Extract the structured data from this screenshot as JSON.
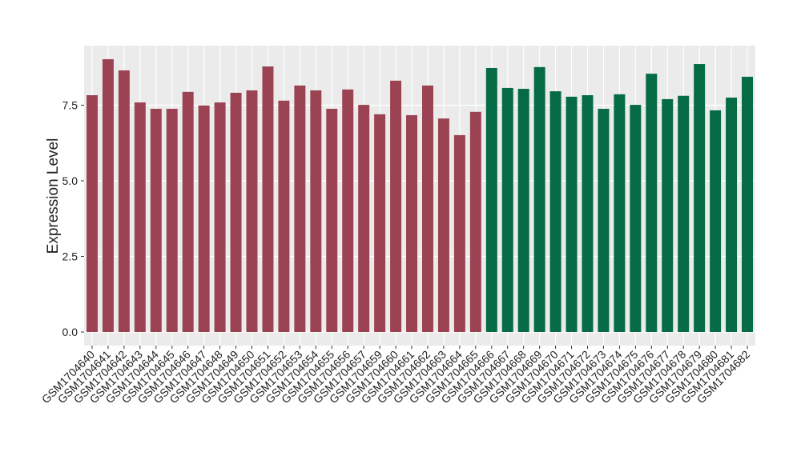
{
  "chart_data": {
    "type": "bar",
    "y_label": "Expression Level",
    "categories": [
      "GSM1704640",
      "GSM1704641",
      "GSM1704642",
      "GSM1704643",
      "GSM1704644",
      "GSM1704645",
      "GSM1704646",
      "GSM1704647",
      "GSM1704648",
      "GSM1704649",
      "GSM1704650",
      "GSM1704651",
      "GSM1704652",
      "GSM1704653",
      "GSM1704654",
      "GSM1704655",
      "GSM1704656",
      "GSM1704657",
      "GSM1704659",
      "GSM1704660",
      "GSM1704661",
      "GSM1704662",
      "GSM1704663",
      "GSM1704664",
      "GSM1704665",
      "GSM1704666",
      "GSM1704667",
      "GSM1704668",
      "GSM1704669",
      "GSM1704670",
      "GSM1704671",
      "GSM1704672",
      "GSM1704673",
      "GSM1704674",
      "GSM1704675",
      "GSM1704676",
      "GSM1704677",
      "GSM1704678",
      "GSM1704679",
      "GSM1704680",
      "GSM1704681",
      "GSM1704682"
    ],
    "values": [
      7.83,
      9.02,
      8.65,
      7.59,
      7.38,
      7.38,
      7.94,
      7.49,
      7.59,
      7.91,
      7.99,
      8.78,
      7.65,
      8.15,
      7.99,
      7.38,
      8.02,
      7.51,
      7.2,
      8.31,
      7.17,
      8.15,
      7.06,
      6.51,
      7.28,
      8.73,
      8.07,
      8.04,
      8.76,
      7.96,
      7.78,
      7.83,
      7.38,
      7.86,
      7.51,
      8.54,
      7.7,
      7.81,
      8.86,
      7.33,
      7.75,
      8.44
    ],
    "colors": [
      "#9b4352",
      "#9b4352",
      "#9b4352",
      "#9b4352",
      "#9b4352",
      "#9b4352",
      "#9b4352",
      "#9b4352",
      "#9b4352",
      "#9b4352",
      "#9b4352",
      "#9b4352",
      "#9b4352",
      "#9b4352",
      "#9b4352",
      "#9b4352",
      "#9b4352",
      "#9b4352",
      "#9b4352",
      "#9b4352",
      "#9b4352",
      "#9b4352",
      "#9b4352",
      "#9b4352",
      "#9b4352",
      "#056b45",
      "#056b45",
      "#056b45",
      "#056b45",
      "#056b45",
      "#056b45",
      "#056b45",
      "#056b45",
      "#056b45",
      "#056b45",
      "#056b45",
      "#056b45",
      "#056b45",
      "#056b45",
      "#056b45",
      "#056b45",
      "#056b45"
    ],
    "ylim": [
      -0.45,
      9.47
    ],
    "yticks": [
      {
        "value": 0,
        "label": "0.0"
      },
      2.5,
      {
        "value": 5,
        "label": "5.0"
      },
      7.5
    ],
    "grid": true
  }
}
